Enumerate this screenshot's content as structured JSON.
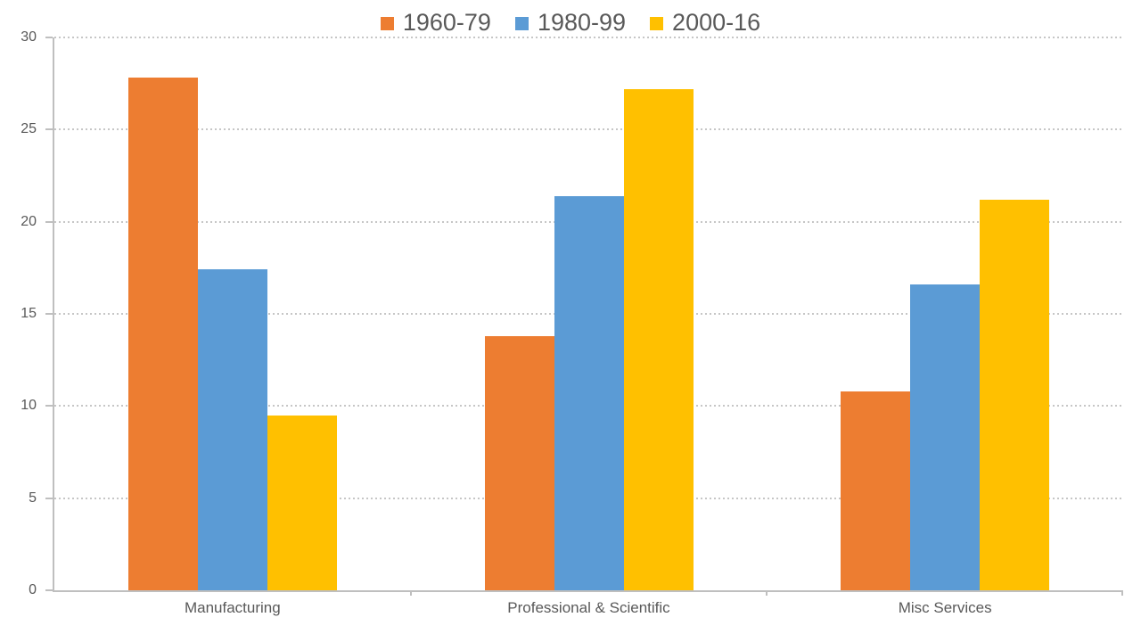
{
  "chart_data": {
    "type": "bar",
    "title": "",
    "xlabel": "",
    "ylabel": "",
    "categories": [
      "Manufacturing",
      "Professional & Scientific",
      "Misc Services"
    ],
    "series": [
      {
        "name": "1960-79",
        "color": "#ED7D31",
        "values": [
          27.8,
          13.8,
          10.8
        ]
      },
      {
        "name": "1980-99",
        "color": "#5B9BD5",
        "values": [
          17.4,
          21.4,
          16.6
        ]
      },
      {
        "name": "2000-16",
        "color": "#FFC000",
        "values": [
          9.5,
          27.2,
          21.2
        ]
      }
    ],
    "ylim": [
      0,
      30
    ],
    "yticks": [
      0,
      5,
      10,
      15,
      20,
      25,
      30
    ],
    "grid": "horizontal-dotted",
    "legend_position": "top-center"
  },
  "style": {
    "axis_color": "#BFBFBF",
    "gridline_color": "#C6C6C6",
    "text_color": "#595959",
    "background": "#FFFFFF"
  }
}
